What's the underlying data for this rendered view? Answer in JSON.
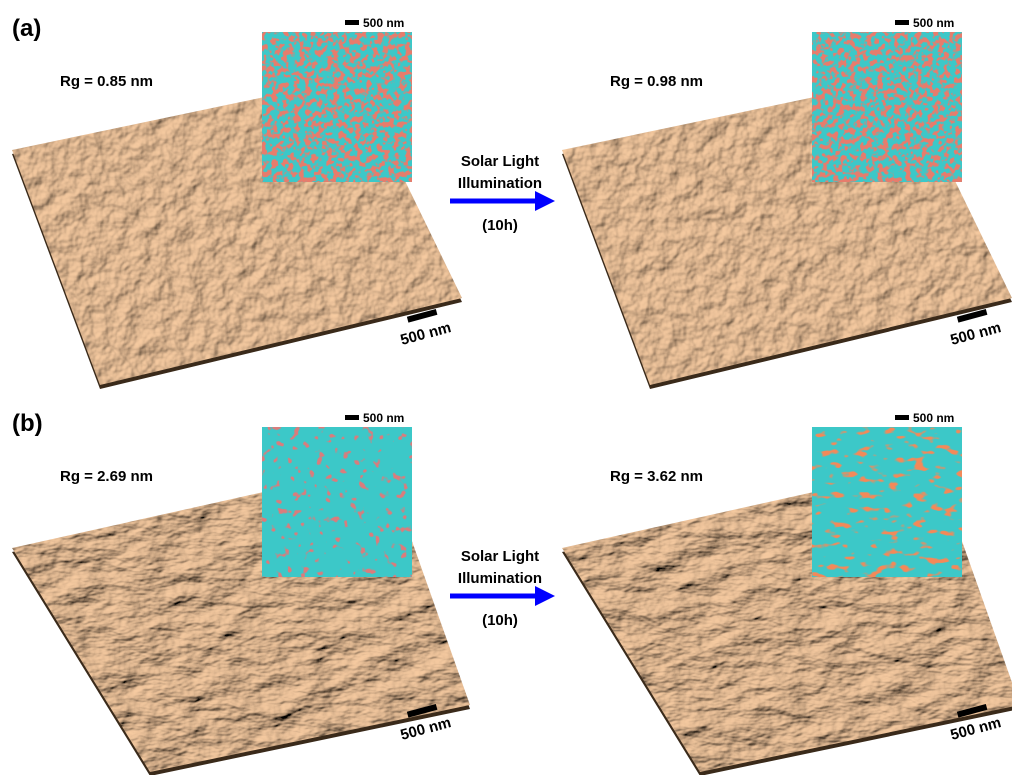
{
  "panels": [
    {
      "label": "(a)",
      "before": {
        "roughness": "Rg = 0.85 nm",
        "inset_scale": "500 nm",
        "surface_scale": "500 nm"
      },
      "arrow": {
        "line1": "Solar Light",
        "line2": "Illumination",
        "duration": "(10h)"
      },
      "after": {
        "roughness": "Rg = 0.98 nm",
        "inset_scale": "500 nm",
        "surface_scale": "500 nm"
      }
    },
    {
      "label": "(b)",
      "before": {
        "roughness": "Rg = 2.69 nm",
        "inset_scale": "500 nm",
        "surface_scale": "500 nm"
      },
      "arrow": {
        "line1": "Solar Light",
        "line2": "Illumination",
        "duration": "(10h)"
      },
      "after": {
        "roughness": "Rg = 3.62 nm",
        "inset_scale": "500 nm",
        "surface_scale": "500 nm"
      }
    }
  ]
}
